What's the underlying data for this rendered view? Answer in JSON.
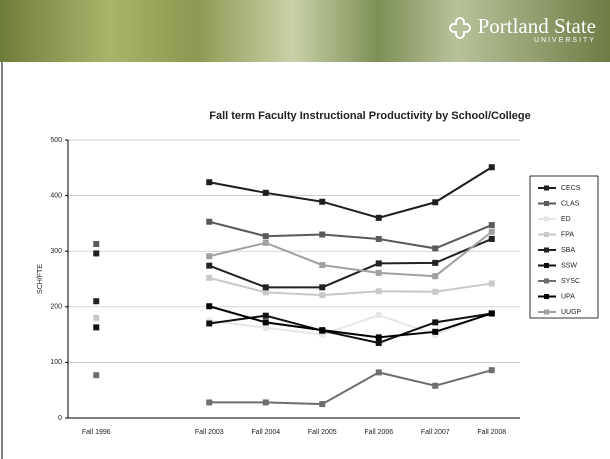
{
  "header": {
    "logo_name": "Portland State",
    "logo_sub": "UNIVERSITY"
  },
  "chart_data": {
    "type": "line",
    "title": "Fall term Faculty Instructional Productivity by School/College",
    "y_label": "SCH/FTE",
    "categories": [
      "Fall 1996",
      null,
      "Fall 2003",
      "Fall 2004",
      "Fall 2005",
      "Fall 2006",
      "Fall 2007",
      "Fall 2008"
    ],
    "ylim": [
      0,
      500
    ],
    "yticks": [
      0,
      100,
      200,
      300,
      400,
      500
    ],
    "grid": true,
    "legend": "right",
    "series": [
      {
        "name": "CECS",
        "color": "#1e1e1e",
        "values": [
          296,
          null,
          424,
          405,
          389,
          360,
          388,
          451
        ]
      },
      {
        "name": "CLAS",
        "color": "#5a5a5a",
        "values": [
          313,
          null,
          353,
          327,
          330,
          322,
          305,
          347
        ]
      },
      {
        "name": "ED",
        "color": "#e6e6e6",
        "values": [
          null,
          null,
          175,
          162,
          150,
          185,
          150,
          190
        ]
      },
      {
        "name": "FPA",
        "color": "#c8c8c8",
        "values": [
          180,
          null,
          252,
          226,
          221,
          228,
          227,
          242
        ]
      },
      {
        "name": "SBA",
        "color": "#222222",
        "values": [
          210,
          null,
          274,
          235,
          235,
          278,
          279,
          322
        ]
      },
      {
        "name": "SSW",
        "color": "#111111",
        "values": [
          163,
          null,
          170,
          184,
          157,
          135,
          172,
          188
        ]
      },
      {
        "name": "SYSC",
        "color": "#6e6e6e",
        "values": [
          77,
          null,
          28,
          28,
          25,
          82,
          58,
          86
        ]
      },
      {
        "name": "UPA",
        "color": "#000000",
        "values": [
          null,
          null,
          201,
          172,
          158,
          145,
          155,
          188
        ]
      },
      {
        "name": "UUGP",
        "color": "#a0a0a0",
        "values": [
          null,
          null,
          291,
          315,
          275,
          261,
          255,
          335
        ]
      }
    ]
  }
}
